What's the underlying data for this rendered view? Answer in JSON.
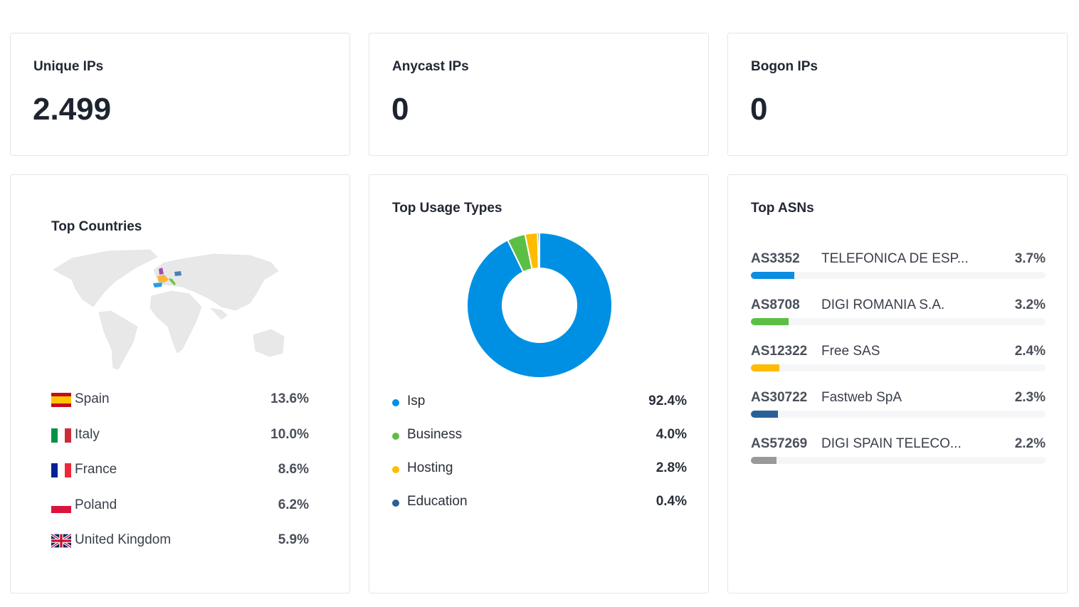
{
  "stats": [
    {
      "title": "Unique IPs",
      "value": "2.499"
    },
    {
      "title": "Anycast IPs",
      "value": "0"
    },
    {
      "title": "Bogon IPs",
      "value": "0"
    }
  ],
  "countries": {
    "title": "Top Countries",
    "items": [
      {
        "name": "Spain",
        "pct": "13.6%",
        "color": "#2f9be6"
      },
      {
        "name": "Italy",
        "pct": "10.0%",
        "color": "#6cc44f"
      },
      {
        "name": "France",
        "pct": "8.6%",
        "color": "#f7b731"
      },
      {
        "name": "Poland",
        "pct": "6.2%",
        "color": "#4a7fb5"
      },
      {
        "name": "United Kingdom",
        "pct": "5.9%",
        "color": "#9b4fb8"
      }
    ]
  },
  "usage": {
    "title": "Top Usage Types",
    "items": [
      {
        "name": "Isp",
        "pct": "92.4%",
        "value": 92.4,
        "color": "#0090e3"
      },
      {
        "name": "Business",
        "pct": "4.0%",
        "value": 4.0,
        "color": "#5bbf45"
      },
      {
        "name": "Hosting",
        "pct": "2.8%",
        "value": 2.8,
        "color": "#ffbb00"
      },
      {
        "name": "Education",
        "pct": "0.4%",
        "value": 0.4,
        "color": "#2a6099"
      }
    ]
  },
  "asns": {
    "title": "Top ASNs",
    "items": [
      {
        "asn": "AS3352",
        "org": "TELEFONICA DE ESP...",
        "pct": "3.7%",
        "value": 3.7,
        "color": "#0b8de3"
      },
      {
        "asn": "AS8708",
        "org": "DIGI ROMANIA S.A.",
        "pct": "3.2%",
        "value": 3.2,
        "color": "#5bbf45"
      },
      {
        "asn": "AS12322",
        "org": "Free SAS",
        "pct": "2.4%",
        "value": 2.4,
        "color": "#ffbb00"
      },
      {
        "asn": "AS30722",
        "org": "Fastweb SpA",
        "pct": "2.3%",
        "value": 2.3,
        "color": "#2a6099"
      },
      {
        "asn": "AS57269",
        "org": "DIGI SPAIN TELECO...",
        "pct": "2.2%",
        "value": 2.2,
        "color": "#999999"
      }
    ]
  }
}
